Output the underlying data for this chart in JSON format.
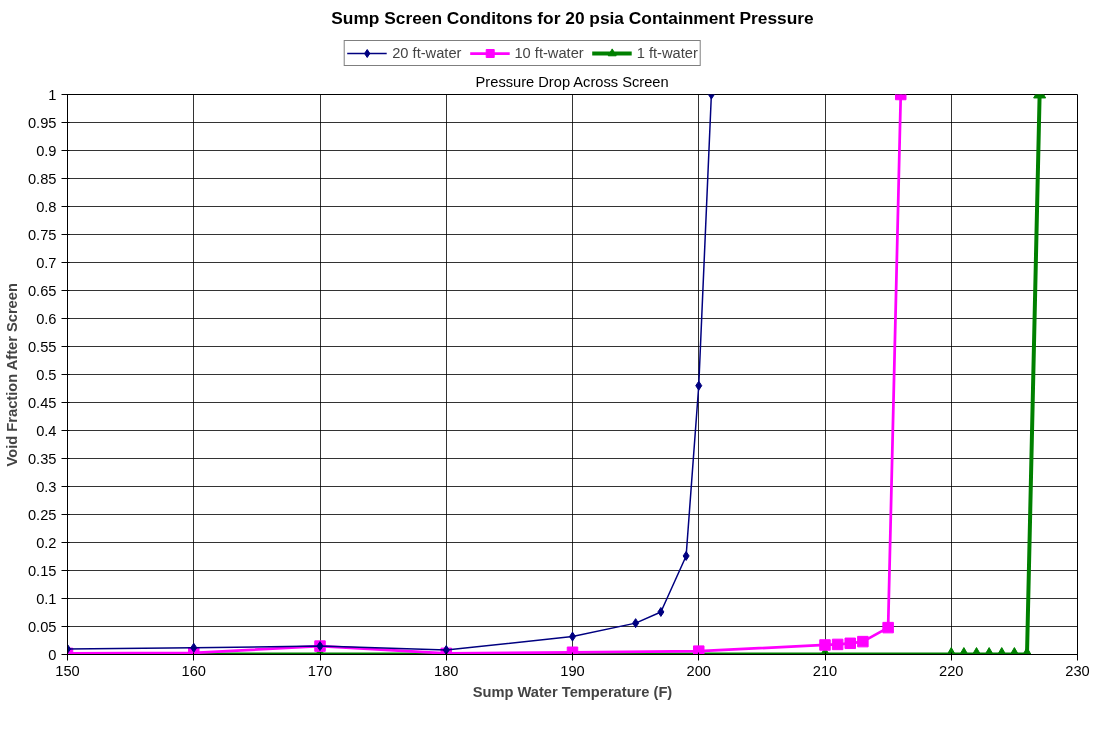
{
  "chart_data": {
    "type": "line",
    "title": "Sump Screen Conditons for 20 psia Containment Pressure",
    "subtitle": "Pressure Drop Across Screen",
    "xlabel": "Sump Water Temperature (F)",
    "ylabel": "Void Fraction After Screen",
    "xlim": [
      150,
      230
    ],
    "xticks": [
      150,
      160,
      170,
      180,
      190,
      200,
      210,
      220,
      230
    ],
    "ylim": [
      0,
      1
    ],
    "yticks": [
      0,
      0.05,
      0.1,
      0.15,
      0.2,
      0.25,
      0.3,
      0.35,
      0.4,
      0.45,
      0.5,
      0.55,
      0.6,
      0.65,
      0.7,
      0.75,
      0.8,
      0.85,
      0.9,
      0.95,
      1
    ],
    "grid": true,
    "legend": "top",
    "line_style": "solid",
    "series": [
      {
        "name": "20 ft-water",
        "color": "#000080",
        "marker": "diamond",
        "x": [
          150,
          160,
          170,
          180,
          190,
          195,
          197,
          199,
          200,
          201
        ],
        "values": [
          0.01,
          0.012,
          0.015,
          0.008,
          0.032,
          0.056,
          0.076,
          0.176,
          0.48,
          1
        ]
      },
      {
        "name": "10 ft-water",
        "color": "#ff00ff",
        "marker": "square",
        "x": [
          150,
          160,
          170,
          180,
          190,
          200,
          210,
          211,
          212,
          213,
          215,
          216
        ],
        "values": [
          0.002,
          0.003,
          0.015,
          0.002,
          0.004,
          0.006,
          0.017,
          0.018,
          0.02,
          0.023,
          0.048,
          1
        ]
      },
      {
        "name": "1 ft-water",
        "color": "#008000",
        "marker": "triangle",
        "x": [
          150,
          160,
          170,
          180,
          190,
          200,
          210,
          220,
          221,
          222,
          223,
          224,
          225,
          226,
          227
        ],
        "values": [
          0,
          0,
          0,
          0,
          0,
          0,
          0,
          0,
          0,
          0,
          0,
          0,
          0,
          0,
          1
        ]
      }
    ]
  }
}
